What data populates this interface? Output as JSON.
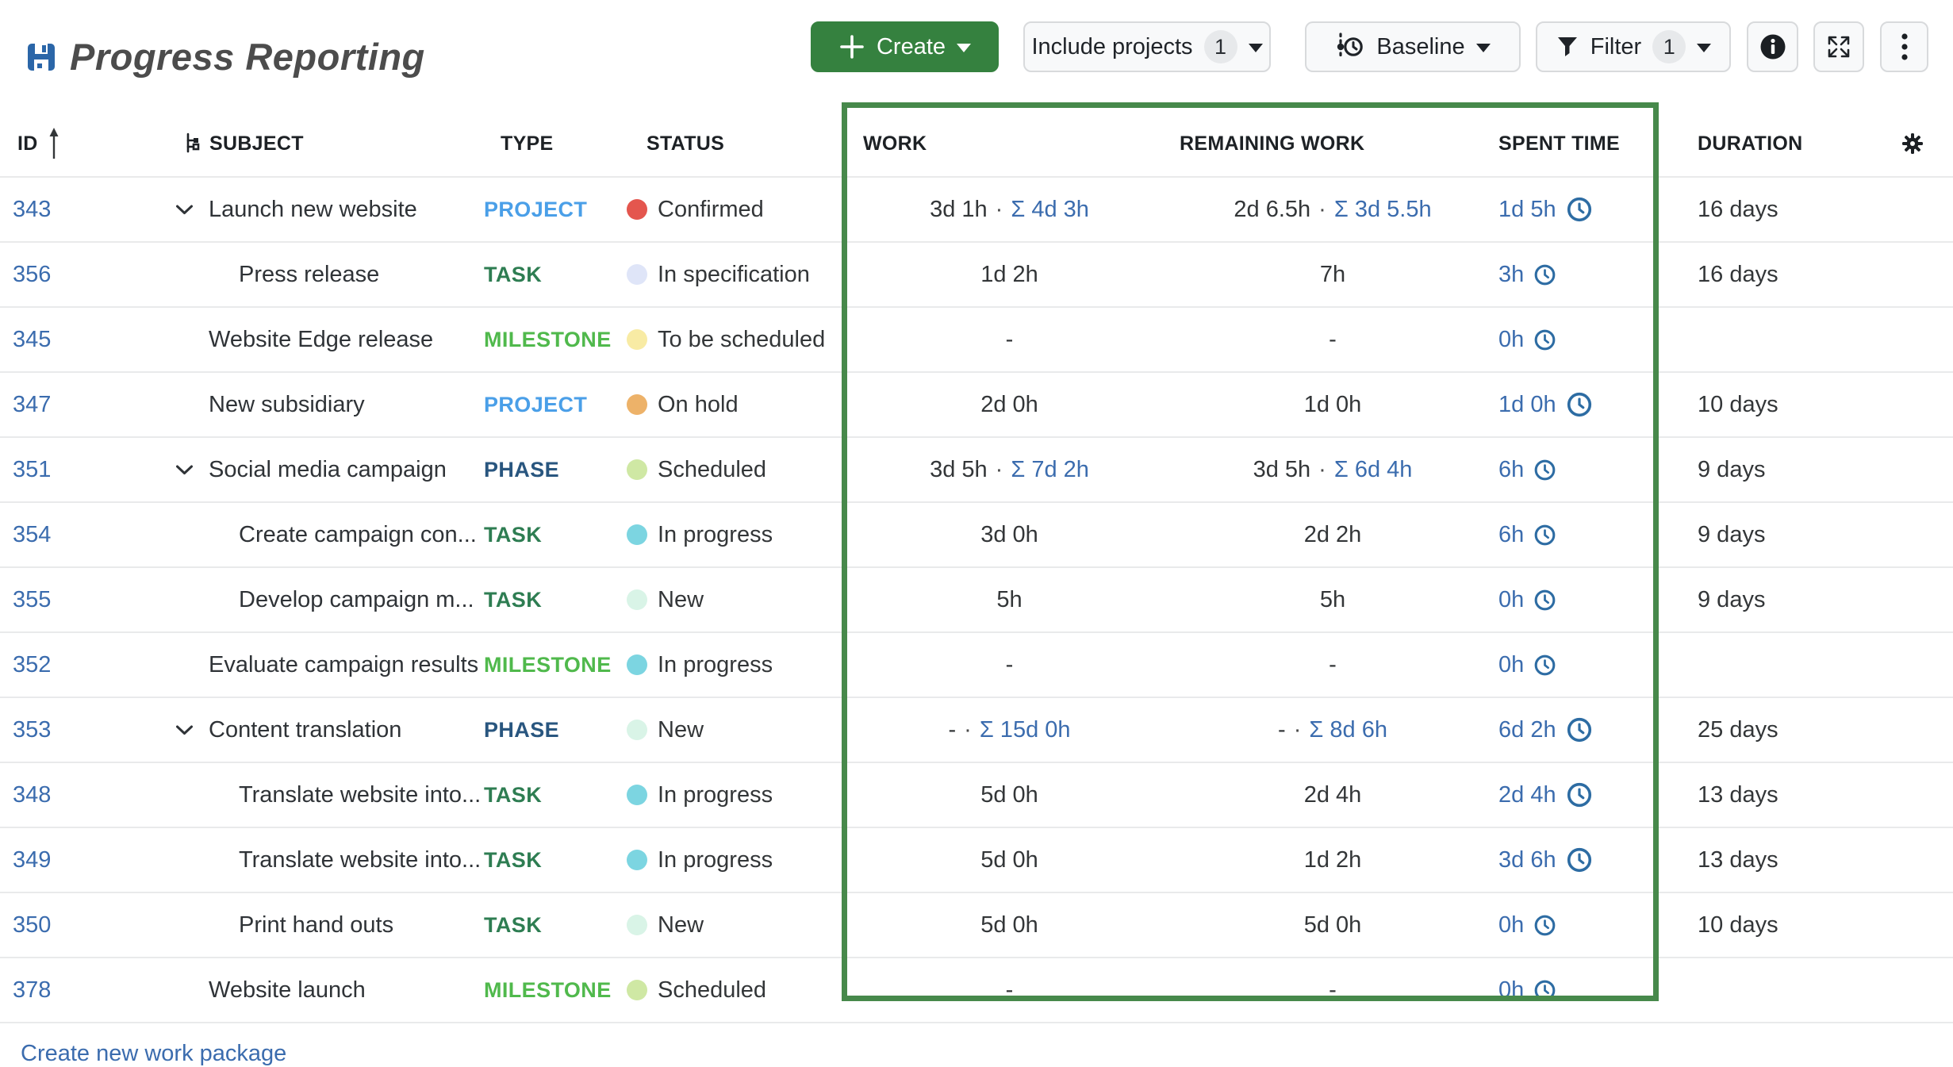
{
  "app": {
    "title": "Progress Reporting"
  },
  "toolbar": {
    "create": {
      "label": "Create"
    },
    "include_projects": {
      "label": "Include projects",
      "count": "1"
    },
    "baseline": {
      "label": "Baseline"
    },
    "filter": {
      "label": "Filter",
      "count": "1"
    }
  },
  "table": {
    "columns": {
      "id": "ID",
      "subject": "SUBJECT",
      "type": "TYPE",
      "status": "STATUS",
      "work": "WORK",
      "remaining_work": "REMAINING WORK",
      "spent_time": "SPENT TIME",
      "duration": "DURATION"
    },
    "type_colors": {
      "PROJECT": "#4a9fe8",
      "TASK": "#2e7d52",
      "MILESTONE": "#50b94c",
      "PHASE": "#29567f"
    },
    "status_colors": {
      "Confirmed": "#e4564e",
      "In specification": "#dfe5f8",
      "To be scheduled": "#f8eba4",
      "On hold": "#edb269",
      "Scheduled": "#cfe8a4",
      "In progress": "#7cd5e1",
      "New": "#d9f4e7"
    },
    "rows": [
      {
        "id": "343",
        "indent": 0,
        "expandable": true,
        "subject": "Launch new website",
        "type": "PROJECT",
        "status": "Confirmed",
        "work": "3d 1h",
        "work_sum": "Σ 4d 3h",
        "remaining": "2d 6.5h",
        "remaining_sum": "Σ 3d 5.5h",
        "spent": "1d 5h",
        "duration": "16 days"
      },
      {
        "id": "356",
        "indent": 1,
        "expandable": false,
        "subject": "Press release",
        "type": "TASK",
        "status": "In specification",
        "work": "1d 2h",
        "work_sum": "",
        "remaining": "7h",
        "remaining_sum": "",
        "spent": "3h",
        "duration": "16 days"
      },
      {
        "id": "345",
        "indent": 0,
        "expandable": false,
        "subject": "Website Edge release",
        "type": "MILESTONE",
        "status": "To be scheduled",
        "work": "-",
        "work_sum": "",
        "remaining": "-",
        "remaining_sum": "",
        "spent": "0h",
        "duration": ""
      },
      {
        "id": "347",
        "indent": 0,
        "expandable": false,
        "subject": "New subsidiary",
        "type": "PROJECT",
        "status": "On hold",
        "work": "2d 0h",
        "work_sum": "",
        "remaining": "1d 0h",
        "remaining_sum": "",
        "spent": "1d 0h",
        "duration": "10 days"
      },
      {
        "id": "351",
        "indent": 0,
        "expandable": true,
        "subject": "Social media campaign",
        "type": "PHASE",
        "status": "Scheduled",
        "work": "3d 5h",
        "work_sum": "Σ 7d 2h",
        "remaining": "3d 5h",
        "remaining_sum": "Σ 6d 4h",
        "spent": "6h",
        "duration": "9 days"
      },
      {
        "id": "354",
        "indent": 1,
        "expandable": false,
        "subject": "Create campaign con...",
        "type": "TASK",
        "status": "In progress",
        "work": "3d 0h",
        "work_sum": "",
        "remaining": "2d 2h",
        "remaining_sum": "",
        "spent": "6h",
        "duration": "9 days"
      },
      {
        "id": "355",
        "indent": 1,
        "expandable": false,
        "subject": "Develop campaign m...",
        "type": "TASK",
        "status": "New",
        "work": "5h",
        "work_sum": "",
        "remaining": "5h",
        "remaining_sum": "",
        "spent": "0h",
        "duration": "9 days"
      },
      {
        "id": "352",
        "indent": 0,
        "expandable": false,
        "subject": "Evaluate campaign results",
        "type": "MILESTONE",
        "status": "In progress",
        "work": "-",
        "work_sum": "",
        "remaining": "-",
        "remaining_sum": "",
        "spent": "0h",
        "duration": ""
      },
      {
        "id": "353",
        "indent": 0,
        "expandable": true,
        "subject": "Content translation",
        "type": "PHASE",
        "status": "New",
        "work": "-",
        "work_sum": "Σ 15d 0h",
        "remaining": "-",
        "remaining_sum": "Σ 8d 6h",
        "spent": "6d 2h",
        "duration": "25 days"
      },
      {
        "id": "348",
        "indent": 1,
        "expandable": false,
        "subject": "Translate website into...",
        "type": "TASK",
        "status": "In progress",
        "work": "5d 0h",
        "work_sum": "",
        "remaining": "2d 4h",
        "remaining_sum": "",
        "spent": "2d 4h",
        "duration": "13 days"
      },
      {
        "id": "349",
        "indent": 1,
        "expandable": false,
        "subject": "Translate website into...",
        "type": "TASK",
        "status": "In progress",
        "work": "5d 0h",
        "work_sum": "",
        "remaining": "1d 2h",
        "remaining_sum": "",
        "spent": "3d 6h",
        "duration": "13 days"
      },
      {
        "id": "350",
        "indent": 1,
        "expandable": false,
        "subject": "Print hand outs",
        "type": "TASK",
        "status": "New",
        "work": "5d 0h",
        "work_sum": "",
        "remaining": "5d 0h",
        "remaining_sum": "",
        "spent": "0h",
        "duration": "10 days"
      },
      {
        "id": "378",
        "indent": 0,
        "expandable": false,
        "subject": "Website launch",
        "type": "MILESTONE",
        "status": "Scheduled",
        "work": "-",
        "work_sum": "",
        "remaining": "-",
        "remaining_sum": "",
        "spent": "0h",
        "duration": ""
      }
    ]
  },
  "footer": {
    "create_link": "Create new work package"
  },
  "colors": {
    "accent_green": "#35813f",
    "selection_border": "#47894b",
    "link_blue": "#3b6cae",
    "clock_icon": "#2d6ca3",
    "save_icon": "#2b66a8"
  }
}
